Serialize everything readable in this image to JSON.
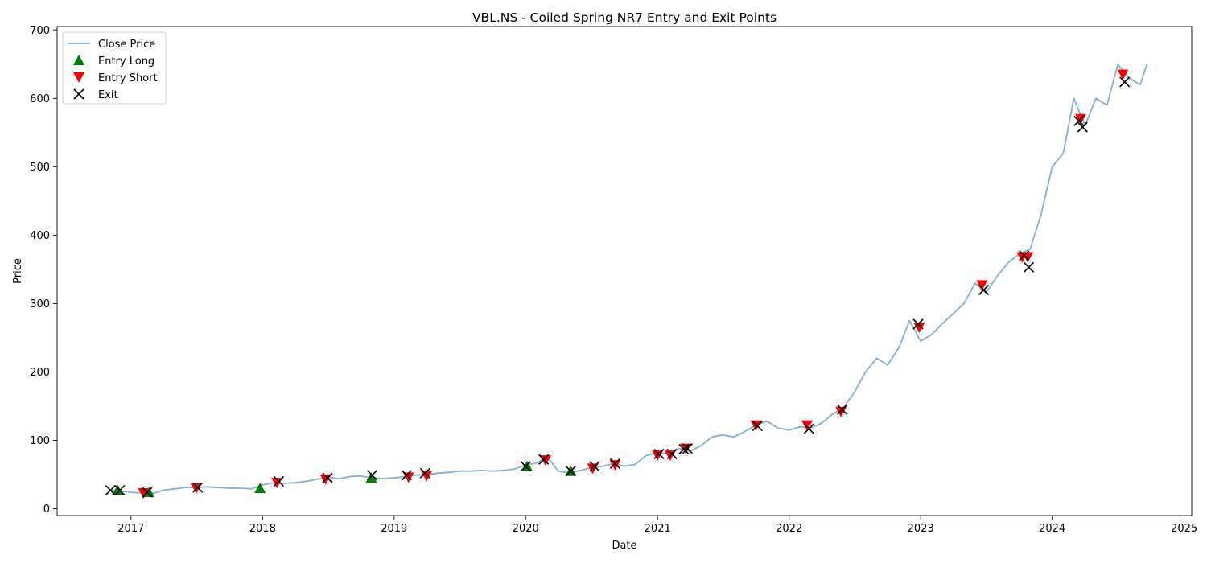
{
  "chart_data": {
    "type": "line",
    "title": "VBL.NS - Coiled Spring NR7 Entry and Exit Points",
    "xlabel": "Date",
    "ylabel": "Price",
    "xlim": [
      "2016-06-10",
      "2025-01-22"
    ],
    "ylim": [
      -10,
      705
    ],
    "x_ticks": [
      "2017",
      "2018",
      "2019",
      "2020",
      "2021",
      "2022",
      "2023",
      "2024",
      "2025"
    ],
    "y_ticks": [
      0,
      100,
      200,
      300,
      400,
      500,
      600,
      700
    ],
    "grid": false,
    "legend_position": "upper-left",
    "series": [
      {
        "name": "Close Price",
        "kind": "line",
        "color": "#7fb0d6",
        "points": [
          [
            "2016-11-01",
            27
          ],
          [
            "2016-12-01",
            26
          ],
          [
            "2017-01-01",
            24
          ],
          [
            "2017-02-01",
            23
          ],
          [
            "2017-03-01",
            22
          ],
          [
            "2017-04-01",
            27
          ],
          [
            "2017-05-01",
            29
          ],
          [
            "2017-06-01",
            31
          ],
          [
            "2017-07-01",
            31
          ],
          [
            "2017-08-01",
            32
          ],
          [
            "2017-09-01",
            31
          ],
          [
            "2017-10-01",
            30
          ],
          [
            "2017-11-01",
            30
          ],
          [
            "2017-12-01",
            29
          ],
          [
            "2018-01-01",
            35
          ],
          [
            "2018-02-01",
            38
          ],
          [
            "2018-03-01",
            37
          ],
          [
            "2018-04-01",
            38
          ],
          [
            "2018-05-01",
            40
          ],
          [
            "2018-06-01",
            43
          ],
          [
            "2018-07-01",
            46
          ],
          [
            "2018-08-01",
            44
          ],
          [
            "2018-09-01",
            47
          ],
          [
            "2018-10-01",
            48
          ],
          [
            "2018-11-01",
            45
          ],
          [
            "2018-12-01",
            44
          ],
          [
            "2019-01-01",
            45
          ],
          [
            "2019-02-01",
            47
          ],
          [
            "2019-03-01",
            49
          ],
          [
            "2019-04-01",
            50
          ],
          [
            "2019-05-01",
            52
          ],
          [
            "2019-06-01",
            53
          ],
          [
            "2019-07-01",
            55
          ],
          [
            "2019-08-01",
            55
          ],
          [
            "2019-09-01",
            56
          ],
          [
            "2019-10-01",
            55
          ],
          [
            "2019-11-01",
            56
          ],
          [
            "2019-12-01",
            58
          ],
          [
            "2020-01-01",
            64
          ],
          [
            "2020-02-01",
            67
          ],
          [
            "2020-03-01",
            76
          ],
          [
            "2020-04-01",
            55
          ],
          [
            "2020-05-01",
            52
          ],
          [
            "2020-06-01",
            56
          ],
          [
            "2020-07-01",
            60
          ],
          [
            "2020-08-01",
            62
          ],
          [
            "2020-09-01",
            66
          ],
          [
            "2020-10-01",
            62
          ],
          [
            "2020-11-01",
            65
          ],
          [
            "2020-12-01",
            78
          ],
          [
            "2021-01-01",
            82
          ],
          [
            "2021-02-01",
            80
          ],
          [
            "2021-03-01",
            88
          ],
          [
            "2021-04-01",
            84
          ],
          [
            "2021-05-01",
            92
          ],
          [
            "2021-06-01",
            105
          ],
          [
            "2021-07-01",
            108
          ],
          [
            "2021-08-01",
            105
          ],
          [
            "2021-09-01",
            113
          ],
          [
            "2021-10-01",
            122
          ],
          [
            "2021-11-01",
            128
          ],
          [
            "2021-12-01",
            118
          ],
          [
            "2022-01-01",
            115
          ],
          [
            "2022-02-01",
            120
          ],
          [
            "2022-03-01",
            118
          ],
          [
            "2022-04-01",
            125
          ],
          [
            "2022-05-01",
            138
          ],
          [
            "2022-06-01",
            148
          ],
          [
            "2022-07-01",
            170
          ],
          [
            "2022-08-01",
            200
          ],
          [
            "2022-09-01",
            220
          ],
          [
            "2022-10-01",
            210
          ],
          [
            "2022-11-01",
            235
          ],
          [
            "2022-12-01",
            275
          ],
          [
            "2023-01-01",
            245
          ],
          [
            "2023-02-01",
            255
          ],
          [
            "2023-03-01",
            270
          ],
          [
            "2023-04-01",
            285
          ],
          [
            "2023-05-01",
            300
          ],
          [
            "2023-06-01",
            330
          ],
          [
            "2023-07-01",
            315
          ],
          [
            "2023-08-01",
            340
          ],
          [
            "2023-09-01",
            360
          ],
          [
            "2023-10-01",
            372
          ],
          [
            "2023-11-01",
            380
          ],
          [
            "2023-12-01",
            430
          ],
          [
            "2024-01-01",
            500
          ],
          [
            "2024-02-01",
            520
          ],
          [
            "2024-03-01",
            600
          ],
          [
            "2024-04-01",
            560
          ],
          [
            "2024-05-01",
            600
          ],
          [
            "2024-06-01",
            590
          ],
          [
            "2024-07-01",
            650
          ],
          [
            "2024-08-01",
            630
          ],
          [
            "2024-09-01",
            620
          ],
          [
            "2024-09-20",
            650
          ]
        ]
      },
      {
        "name": "Entry Long",
        "kind": "marker",
        "marker": "triangle-up",
        "color": "#008000",
        "points": [
          [
            "2016-11-25",
            27
          ],
          [
            "2017-02-20",
            24
          ],
          [
            "2017-12-25",
            30
          ],
          [
            "2018-10-30",
            45
          ],
          [
            "2020-01-05",
            62
          ],
          [
            "2020-05-05",
            55
          ]
        ]
      },
      {
        "name": "Entry Short",
        "kind": "marker",
        "marker": "triangle-down",
        "color": "#ff0000",
        "points": [
          [
            "2017-02-05",
            23
          ],
          [
            "2017-07-01",
            30
          ],
          [
            "2018-02-10",
            38
          ],
          [
            "2018-06-25",
            43
          ],
          [
            "2019-02-10",
            46
          ],
          [
            "2019-04-01",
            48
          ],
          [
            "2020-02-25",
            71
          ],
          [
            "2020-07-05",
            59
          ],
          [
            "2020-09-05",
            64
          ],
          [
            "2021-01-01",
            78
          ],
          [
            "2021-02-05",
            78
          ],
          [
            "2021-03-20",
            88
          ],
          [
            "2021-10-01",
            122
          ],
          [
            "2022-02-20",
            122
          ],
          [
            "2022-05-25",
            142
          ],
          [
            "2022-12-28",
            265
          ],
          [
            "2023-06-20",
            327
          ],
          [
            "2023-10-10",
            368
          ],
          [
            "2023-10-25",
            368
          ],
          [
            "2024-03-20",
            570
          ],
          [
            "2024-07-15",
            635
          ]
        ]
      },
      {
        "name": "Exit",
        "kind": "marker",
        "marker": "x",
        "color": "#000000",
        "points": [
          [
            "2016-11-05",
            27
          ],
          [
            "2016-12-01",
            27
          ],
          [
            "2017-02-15",
            24
          ],
          [
            "2017-07-05",
            31
          ],
          [
            "2018-02-15",
            40
          ],
          [
            "2018-06-30",
            45
          ],
          [
            "2018-11-01",
            49
          ],
          [
            "2019-02-05",
            49
          ],
          [
            "2019-03-28",
            52
          ],
          [
            "2020-01-01",
            62
          ],
          [
            "2020-02-20",
            72
          ],
          [
            "2020-05-05",
            55
          ],
          [
            "2020-07-10",
            62
          ],
          [
            "2020-09-05",
            66
          ],
          [
            "2021-01-05",
            80
          ],
          [
            "2021-02-10",
            80
          ],
          [
            "2021-03-15",
            87
          ],
          [
            "2021-03-25",
            88
          ],
          [
            "2021-10-05",
            121
          ],
          [
            "2022-02-25",
            117
          ],
          [
            "2022-05-28",
            145
          ],
          [
            "2022-12-25",
            270
          ],
          [
            "2023-06-25",
            320
          ],
          [
            "2023-10-15",
            370
          ],
          [
            "2023-10-28",
            353
          ],
          [
            "2024-03-15",
            567
          ],
          [
            "2024-03-25",
            558
          ],
          [
            "2024-07-20",
            624
          ]
        ]
      }
    ]
  }
}
